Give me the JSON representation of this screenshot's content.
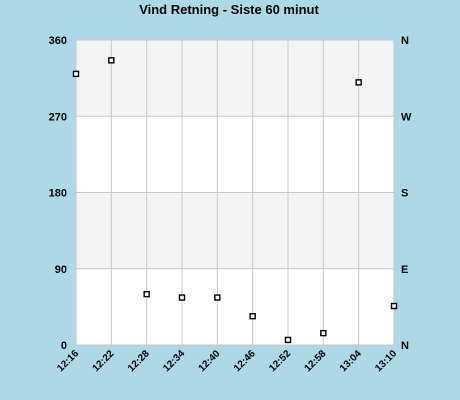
{
  "chart_data": {
    "type": "scatter",
    "title": "Vind Retning - Siste 60 minut",
    "x": [
      "12:16",
      "12:22",
      "12:28",
      "12:34",
      "12:40",
      "12:46",
      "12:52",
      "12:58",
      "13:04",
      "13:10"
    ],
    "x_ticks": [
      "12:16",
      "12:22",
      "12:28",
      "12:34",
      "12:40",
      "12:46",
      "12:52",
      "12:58",
      "13:04",
      "13:10"
    ],
    "series": [
      {
        "values": [
          320,
          336,
          60,
          56,
          56,
          34,
          6,
          14,
          310,
          46
        ]
      }
    ],
    "ylim": [
      0,
      360
    ],
    "y_ticks_left": [
      "0",
      "90",
      "180",
      "270",
      "360"
    ],
    "y_ticks_right": [
      "N",
      "E",
      "S",
      "W",
      "N"
    ],
    "grid": true,
    "colors": {
      "background": "#ADD8E6",
      "band_light": "#FFFFFF",
      "band_shade": "#F4F4F4",
      "grid": "#C8C8C8",
      "marker": "#000000"
    }
  }
}
